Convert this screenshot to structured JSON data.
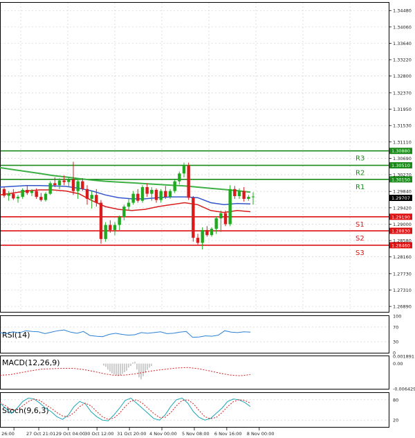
{
  "chart_data": {
    "type": "candlestick",
    "price_axis": {
      "ticks": [
        "1.34480",
        "1.34060",
        "1.33640",
        "1.33220",
        "1.32800",
        "1.32370",
        "1.31950",
        "1.31530",
        "1.31110",
        "1.30690",
        "1.30270",
        "1.29840",
        "1.29420",
        "1.29000",
        "1.28580",
        "1.28160",
        "1.27730",
        "1.27310",
        "1.26890"
      ],
      "range": [
        1.2675,
        1.3468
      ],
      "current_price": "1.29707"
    },
    "x_axis": {
      "labels": [
        "26:00",
        "27 Oct 21:01",
        "29 Oct 04:00",
        "30 Oct 12:00",
        "31 Oct 20:00",
        "4 Nov 00:00",
        "5 Nov 08:00",
        "6 Nov 16:00",
        "8 Nov 00:00"
      ]
    },
    "levels": [
      {
        "name": "R3",
        "value": 1.3088,
        "box": "1.30880",
        "color": "#1a8a1a"
      },
      {
        "name": "R2",
        "value": 1.3051,
        "box": "1.30510",
        "color": "#1a8a1a"
      },
      {
        "name": "R1",
        "value": 1.3015,
        "box": "1.30150",
        "color": "#1a8a1a"
      },
      {
        "name": "S1",
        "value": 1.2919,
        "box": "1.29190",
        "color": "#dd1111"
      },
      {
        "name": "S2",
        "value": 1.2883,
        "box": "1.28830",
        "color": "#dd1111"
      },
      {
        "name": "S3",
        "value": 1.2846,
        "box": "1.28460",
        "color": "#dd1111"
      }
    ],
    "candles": [
      [
        1.299,
        1.2995,
        1.2968,
        1.2973
      ],
      [
        1.2973,
        1.2985,
        1.296,
        1.2978
      ],
      [
        1.2978,
        1.299,
        1.2962,
        1.2966
      ],
      [
        1.2966,
        1.2975,
        1.2955,
        1.297
      ],
      [
        1.297,
        1.2992,
        1.2965,
        1.2988
      ],
      [
        1.2988,
        1.3,
        1.2975,
        1.298
      ],
      [
        1.298,
        1.299,
        1.2972,
        1.2985
      ],
      [
        1.2985,
        1.2992,
        1.2965,
        1.297
      ],
      [
        1.297,
        1.298,
        1.2958,
        1.2962
      ],
      [
        1.2962,
        1.2982,
        1.2958,
        1.2978
      ],
      [
        1.2978,
        1.301,
        1.2975,
        1.3005
      ],
      [
        1.3005,
        1.302,
        1.2995,
        1.3
      ],
      [
        1.3,
        1.3018,
        1.299,
        1.3012
      ],
      [
        1.3012,
        1.3025,
        1.3,
        1.3008
      ],
      [
        1.3008,
        1.302,
        1.2995,
        1.3015
      ],
      [
        1.3015,
        1.306,
        1.2975,
        1.2985
      ],
      [
        1.2985,
        1.3015,
        1.2965,
        1.301
      ],
      [
        1.301,
        1.3018,
        1.2985,
        1.299
      ],
      [
        1.299,
        1.3,
        1.295,
        1.2965
      ],
      [
        1.2965,
        1.2985,
        1.294,
        1.2975
      ],
      [
        1.2975,
        1.299,
        1.2945,
        1.2955
      ],
      [
        1.2955,
        1.2962,
        1.285,
        1.2862
      ],
      [
        1.2862,
        1.2905,
        1.2855,
        1.2898
      ],
      [
        1.2898,
        1.291,
        1.2878,
        1.2885
      ],
      [
        1.2885,
        1.2905,
        1.2872,
        1.2898
      ],
      [
        1.2898,
        1.2922,
        1.2885,
        1.2918
      ],
      [
        1.2918,
        1.295,
        1.291,
        1.2945
      ],
      [
        1.2945,
        1.2965,
        1.2935,
        1.2955
      ],
      [
        1.2955,
        1.2985,
        1.295,
        1.2978
      ],
      [
        1.2978,
        1.299,
        1.2955,
        1.296
      ],
      [
        1.296,
        1.3,
        1.2955,
        1.2995
      ],
      [
        1.2995,
        1.3005,
        1.297,
        1.2978
      ],
      [
        1.2978,
        1.2995,
        1.296,
        1.2988
      ],
      [
        1.2988,
        1.2992,
        1.2955,
        1.2962
      ],
      [
        1.2962,
        1.299,
        1.2955,
        1.2985
      ],
      [
        1.2985,
        1.2998,
        1.2965,
        1.297
      ],
      [
        1.297,
        1.299,
        1.2965,
        1.2985
      ],
      [
        1.2985,
        1.3015,
        1.298,
        1.301
      ],
      [
        1.301,
        1.3035,
        1.3002,
        1.303
      ],
      [
        1.303,
        1.3058,
        1.302,
        1.305
      ],
      [
        1.305,
        1.3058,
        1.2962,
        1.2968
      ],
      [
        1.2968,
        1.2972,
        1.2855,
        1.2865
      ],
      [
        1.2865,
        1.2875,
        1.2848,
        1.2852
      ],
      [
        1.2852,
        1.2892,
        1.2835,
        1.2885
      ],
      [
        1.2885,
        1.2895,
        1.2868,
        1.2872
      ],
      [
        1.2872,
        1.2892,
        1.2868,
        1.2888
      ],
      [
        1.2888,
        1.292,
        1.2875,
        1.2915
      ],
      [
        1.2915,
        1.2935,
        1.288,
        1.2928
      ],
      [
        1.2928,
        1.2935,
        1.2895,
        1.29
      ],
      [
        1.29,
        1.3,
        1.2895,
        1.299
      ],
      [
        1.299,
        1.2998,
        1.2965,
        1.2972
      ],
      [
        1.2972,
        1.2992,
        1.2965,
        1.2985
      ],
      [
        1.2985,
        1.2995,
        1.2958,
        1.2965
      ],
      [
        1.2965,
        1.2975,
        1.296,
        1.297
      ],
      [
        1.297,
        1.2982,
        1.295,
        1.2971
      ]
    ],
    "ma_green": [
      1.3045,
      1.304,
      1.3035,
      1.303,
      1.3025,
      1.3021,
      1.3017,
      1.3013,
      1.301,
      1.3008,
      1.3006,
      1.3004,
      1.3002,
      1.3,
      1.2998,
      1.2995,
      1.2992,
      1.2989,
      1.2986,
      1.2982
    ],
    "ma_blue": [
      1.2995,
      1.2997,
      1.2999,
      1.2999,
      1.2998,
      1.2997,
      1.2992,
      1.2985,
      1.2975,
      1.2968,
      1.2965,
      1.2965,
      1.2968,
      1.297,
      1.297,
      1.2968,
      1.2955,
      1.295,
      1.2953,
      1.2952
    ],
    "ma_red": [
      1.2975,
      1.298,
      1.2985,
      1.2988,
      1.2988,
      1.2985,
      1.2978,
      1.296,
      1.2945,
      1.2938,
      1.2935,
      1.2938,
      1.2945,
      1.295,
      1.2955,
      1.295,
      1.2935,
      1.293,
      1.2935,
      1.2932
    ],
    "rsi": {
      "label": "RSI(14)",
      "ticks": [
        "100",
        "70",
        "30",
        "0"
      ],
      "values": [
        55,
        52,
        57,
        54,
        60,
        58,
        57,
        52,
        56,
        60,
        62,
        56,
        53,
        58,
        47,
        45,
        44,
        50,
        53,
        50,
        48,
        49,
        55,
        53,
        55,
        57,
        52,
        53,
        56,
        58,
        42,
        43,
        46,
        45,
        48,
        60,
        56,
        55,
        57,
        56
      ]
    },
    "macd": {
      "label": "MACD(12,26,9)",
      "ticks": [
        "0.001891",
        "0.00",
        "-0.006429"
      ],
      "signal": [
        -0.003,
        -0.0028,
        -0.0023,
        -0.0018,
        -0.0014,
        -0.0013,
        -0.0012,
        -0.0012,
        -0.0015,
        -0.002,
        -0.0026,
        -0.003,
        -0.0029,
        -0.0026,
        -0.0021,
        -0.0017,
        -0.0014,
        -0.0011,
        -0.001,
        -0.0013,
        -0.0018,
        -0.0024,
        -0.0029,
        -0.0031,
        -0.0028
      ],
      "hist": [
        -0.0005,
        -0.0008,
        -0.0015,
        -0.002,
        -0.0025,
        -0.0028,
        -0.003,
        -0.0032,
        -0.003,
        -0.0026,
        -0.0022,
        -0.0018,
        -0.001,
        -0.0006,
        0.0003,
        0.0005,
        -0.0015,
        -0.0035,
        -0.004,
        -0.0032,
        -0.0024,
        -0.0016,
        -0.001,
        -0.0006
      ]
    },
    "stoch": {
      "label": "Stoch(9,6,3)",
      "ticks": [
        "80",
        "20"
      ],
      "main": [
        70,
        55,
        40,
        55,
        75,
        85,
        82,
        70,
        55,
        45,
        30,
        22,
        35,
        60,
        75,
        68,
        45,
        30,
        20,
        18,
        35,
        55,
        78,
        85,
        70,
        55,
        40,
        25,
        20,
        35,
        60,
        80,
        85,
        70,
        45,
        28,
        20,
        25,
        40,
        55,
        75,
        82,
        80,
        72,
        60
      ],
      "signal": [
        72,
        62,
        50,
        50,
        62,
        75,
        82,
        78,
        66,
        55,
        42,
        32,
        30,
        42,
        60,
        70,
        62,
        45,
        30,
        22,
        26,
        40,
        60,
        76,
        80,
        70,
        55,
        40,
        28,
        28,
        42,
        62,
        78,
        80,
        68,
        48,
        30,
        24,
        28,
        42,
        60,
        74,
        80,
        78,
        70
      ]
    }
  }
}
